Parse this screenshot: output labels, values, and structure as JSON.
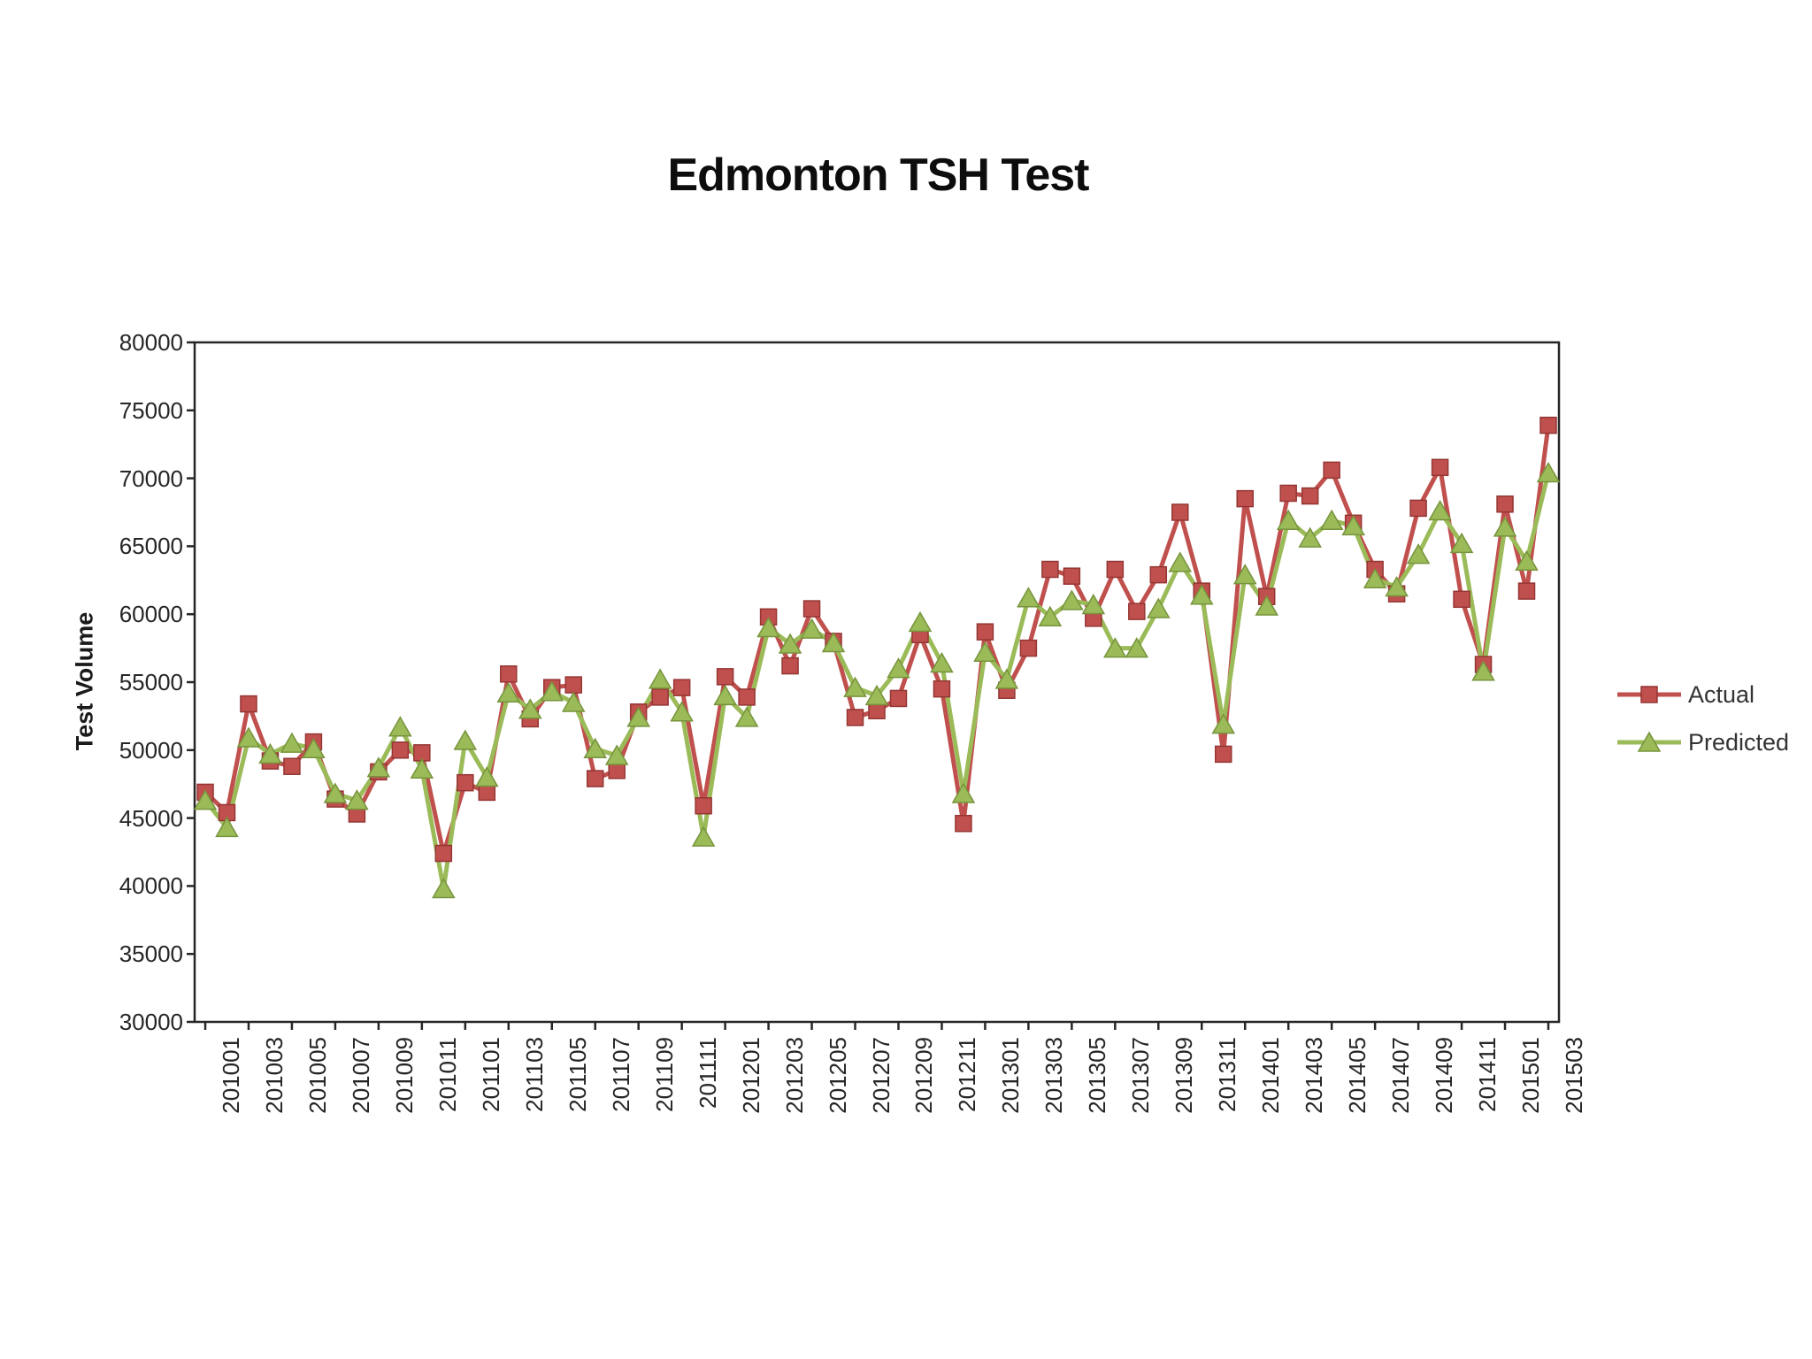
{
  "title": "Edmonton TSH Test",
  "chart_data": {
    "type": "line",
    "title": "Edmonton TSH Test",
    "xlabel": "",
    "ylabel": "Test Volume",
    "ylim": [
      30000,
      80000
    ],
    "ytick_step": 5000,
    "xtick_shown_every": 2,
    "grid": false,
    "legend_position": "right",
    "x": [
      "201001",
      "201002",
      "201003",
      "201004",
      "201005",
      "201006",
      "201007",
      "201008",
      "201009",
      "201010",
      "201011",
      "201012",
      "201101",
      "201102",
      "201103",
      "201104",
      "201105",
      "201106",
      "201107",
      "201108",
      "201109",
      "201110",
      "201111",
      "201112",
      "201201",
      "201202",
      "201203",
      "201204",
      "201205",
      "201206",
      "201207",
      "201208",
      "201209",
      "201210",
      "201211",
      "201212",
      "201301",
      "201302",
      "201303",
      "201304",
      "201305",
      "201306",
      "201307",
      "201308",
      "201309",
      "201310",
      "201311",
      "201312",
      "201401",
      "201402",
      "201403",
      "201404",
      "201405",
      "201406",
      "201407",
      "201408",
      "201409",
      "201410",
      "201411",
      "201412",
      "201501",
      "201502",
      "201503"
    ],
    "series": [
      {
        "name": "Actual",
        "marker": "square",
        "color": "#c0504d",
        "border_color": "#943634",
        "values": [
          46900,
          45400,
          53400,
          49200,
          48800,
          50600,
          46400,
          45300,
          48400,
          50000,
          49800,
          42400,
          47600,
          46900,
          55600,
          52300,
          54600,
          54800,
          47900,
          48500,
          52800,
          53900,
          54600,
          45900,
          55400,
          53900,
          59800,
          56200,
          60400,
          58000,
          52400,
          52900,
          53800,
          58500,
          54500,
          44600,
          58700,
          54400,
          57500,
          63300,
          62800,
          59700,
          63300,
          60200,
          62900,
          67500,
          61700,
          49700,
          68500,
          61300,
          68900,
          68700,
          70600,
          66700,
          63300,
          61500,
          67800,
          70800,
          61100,
          56300,
          68100,
          61700,
          73900
        ]
      },
      {
        "name": "Predicted",
        "marker": "triangle",
        "color": "#9bbb59",
        "border_color": "#77933c",
        "values": [
          46300,
          44300,
          50900,
          49700,
          50500,
          50100,
          46800,
          46300,
          48700,
          51700,
          48600,
          39800,
          50700,
          48000,
          54200,
          53000,
          54300,
          53500,
          50100,
          49600,
          52400,
          55200,
          52800,
          43600,
          54000,
          52400,
          59000,
          57800,
          58900,
          57900,
          54600,
          54000,
          56000,
          59400,
          56400,
          46800,
          57200,
          55200,
          61200,
          59800,
          61000,
          60700,
          57500,
          57500,
          60400,
          63800,
          61400,
          51900,
          62900,
          60600,
          66900,
          65600,
          66900,
          66500,
          62600,
          62000,
          64400,
          67600,
          65200,
          55800,
          66400,
          63900,
          70400
        ]
      }
    ]
  },
  "legend": {
    "actual_label": "Actual",
    "predicted_label": "Predicted"
  },
  "axis_color": "#262626"
}
